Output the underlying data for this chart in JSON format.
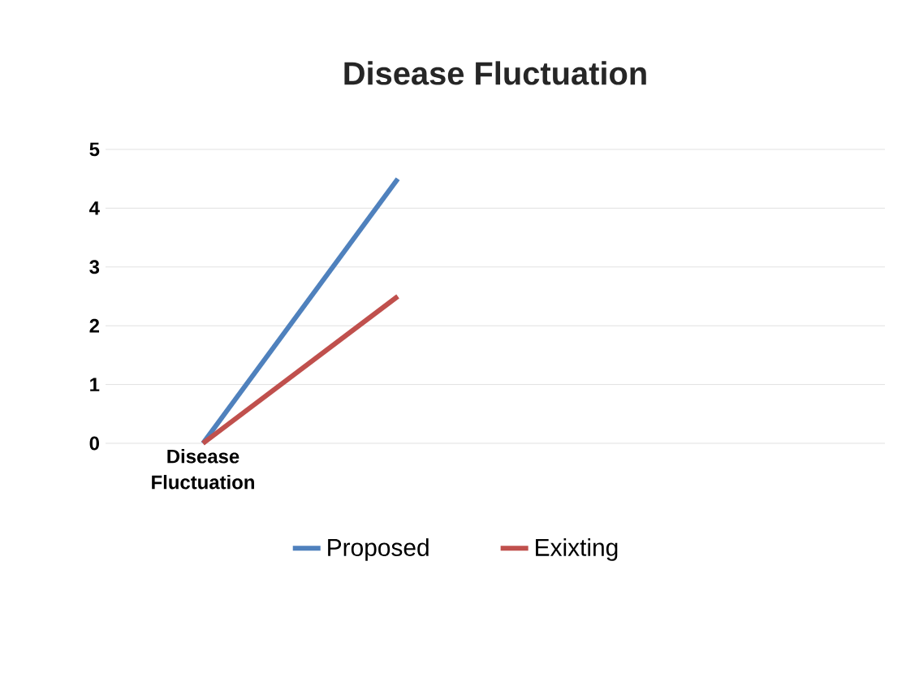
{
  "chart_data": {
    "type": "line",
    "title": "Disease Fluctuation",
    "categories": [
      "Disease Fluctuation",
      null,
      null,
      null
    ],
    "series": [
      {
        "name": "Proposed",
        "color": "#4f81bd",
        "values": [
          0,
          4.5,
          null,
          null
        ]
      },
      {
        "name": "Exixting",
        "color": "#c0504d",
        "values": [
          0,
          2.5,
          null,
          null
        ]
      }
    ],
    "ylim": [
      0,
      5
    ],
    "yticks": [
      0,
      1,
      2,
      3,
      4,
      5
    ],
    "grid": "y",
    "legend": "bottom",
    "marker": "none",
    "line_style": "solid"
  }
}
